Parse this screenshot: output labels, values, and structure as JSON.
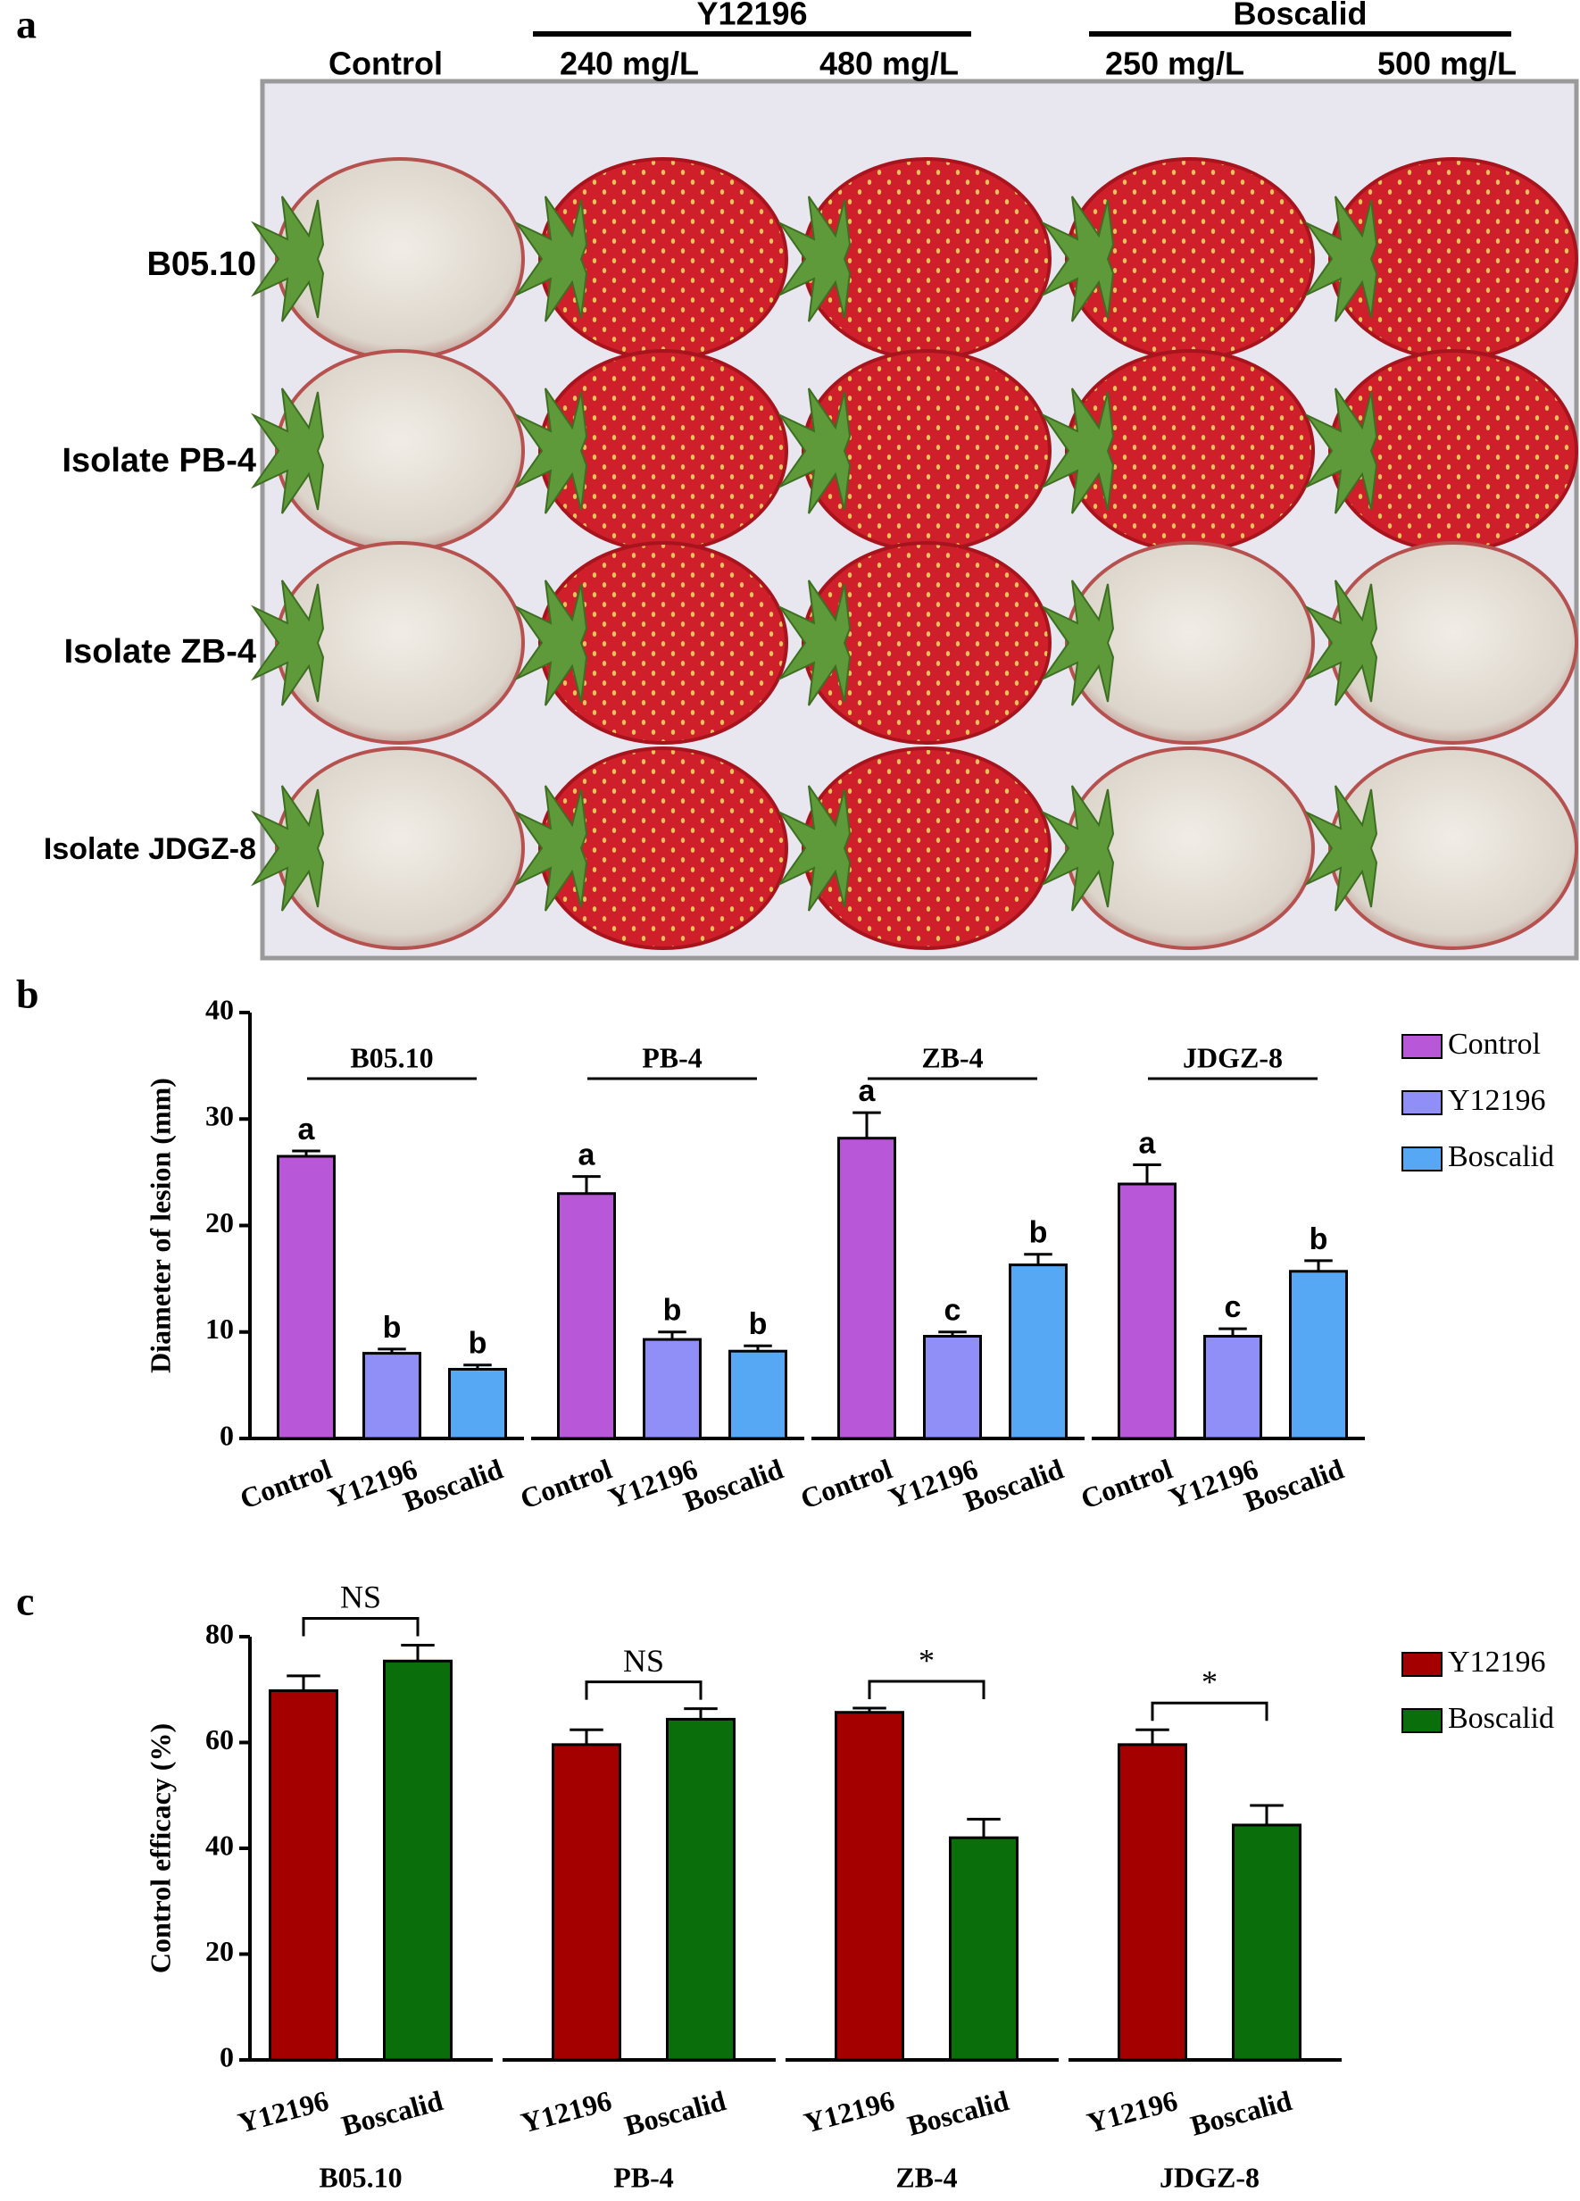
{
  "panel_a": {
    "label": "a",
    "groups": [
      "Y12196",
      "Boscalid"
    ],
    "columns": [
      "Control",
      "240 mg/L",
      "480 mg/L",
      "250 mg/L",
      "500 mg/L"
    ],
    "rows": [
      "B05.10",
      "Isolate PB-4",
      "Isolate ZB-4",
      "Isolate JDGZ-8"
    ]
  },
  "chart_data": [
    {
      "type": "bar",
      "panel_label": "b",
      "y_label": "Diameter of lesion (mm)",
      "categories": [
        "B05.10",
        "PB-4",
        "ZB-4",
        "JDGZ-8"
      ],
      "series": [
        {
          "name": "Control",
          "color": "#b857d8",
          "values": [
            26.5,
            23,
            28.2,
            23.9
          ],
          "errors": [
            0.5,
            1.6,
            2.4,
            1.8
          ],
          "letters": [
            "a",
            "a",
            "a",
            "a"
          ]
        },
        {
          "name": "Y12196",
          "color": "#8f8ff7",
          "values": [
            8,
            9.3,
            9.6,
            9.6
          ],
          "errors": [
            0.4,
            0.7,
            0.4,
            0.7
          ],
          "letters": [
            "b",
            "b",
            "c",
            "c"
          ]
        },
        {
          "name": "Boscalid",
          "color": "#56a8f5",
          "values": [
            6.5,
            8.2,
            16.3,
            15.7
          ],
          "errors": [
            0.4,
            0.5,
            1.0,
            1.0
          ],
          "letters": [
            "b",
            "b",
            "b",
            "b"
          ]
        }
      ],
      "ylim": [
        0,
        40
      ],
      "yticks": [
        0,
        10,
        20,
        30,
        40
      ],
      "legend": "right",
      "group_labels": "top"
    },
    {
      "type": "bar",
      "panel_label": "c",
      "y_label": "Control efficacy (%)",
      "categories": [
        "B05.10",
        "PB-4",
        "ZB-4",
        "JDGZ-8"
      ],
      "series": [
        {
          "name": "Y12196",
          "color": "#a50000",
          "values": [
            69.8,
            59.6,
            65.7,
            59.6
          ],
          "errors": [
            2.8,
            2.8,
            0.8,
            2.8
          ]
        },
        {
          "name": "Boscalid",
          "color": "#0a6e0a",
          "values": [
            75.4,
            64.4,
            42,
            44.4
          ],
          "errors": [
            3.0,
            2.0,
            3.5,
            3.7
          ]
        }
      ],
      "significance": [
        "NS",
        "NS",
        "*",
        "*"
      ],
      "ylim": [
        0,
        80
      ],
      "yticks": [
        0,
        20,
        40,
        60,
        80
      ],
      "legend": "right",
      "group_labels": "bottom"
    }
  ]
}
